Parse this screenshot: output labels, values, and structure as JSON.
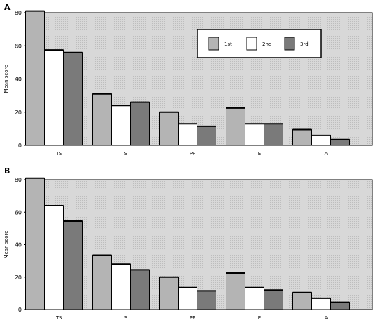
{
  "figure": {
    "legend_labels": [
      "1st",
      "2nd",
      "3rd"
    ]
  },
  "colors": {
    "plot_background": "#d8d8d8",
    "series_1st": "#b4b4b4",
    "series_2nd": "#ffffff",
    "series_3rd": "#7a7a7a",
    "outline": "#000000"
  },
  "chart_data": [
    {
      "panel": "A",
      "type": "bar",
      "categories": [
        "TS",
        "S",
        "PP",
        "E",
        "A"
      ],
      "ylabel": "Mean score",
      "ylim": [
        0,
        80
      ],
      "yticks": [
        0,
        20,
        40,
        60,
        80
      ],
      "legend": "top-right",
      "grid": false,
      "series": [
        {
          "name": "1st",
          "values": [
            81,
            31,
            20,
            22.5,
            9.5
          ]
        },
        {
          "name": "2nd",
          "values": [
            57.5,
            24,
            13,
            13,
            6
          ]
        },
        {
          "name": "3rd",
          "values": [
            56,
            26,
            11.5,
            13,
            3.5
          ]
        }
      ]
    },
    {
      "panel": "B",
      "type": "bar",
      "categories": [
        "TS",
        "S",
        "PP",
        "E",
        "A"
      ],
      "ylabel": "Mean score",
      "ylim": [
        0,
        80
      ],
      "yticks": [
        0,
        20,
        40,
        60,
        80
      ],
      "legend": "none",
      "grid": false,
      "series": [
        {
          "name": "1st",
          "values": [
            81,
            33.5,
            20,
            22.5,
            10.5
          ]
        },
        {
          "name": "2nd",
          "values": [
            64,
            28,
            13.5,
            13.5,
            7
          ]
        },
        {
          "name": "3rd",
          "values": [
            54.5,
            24.5,
            11.5,
            12,
            4.5
          ]
        }
      ]
    }
  ]
}
